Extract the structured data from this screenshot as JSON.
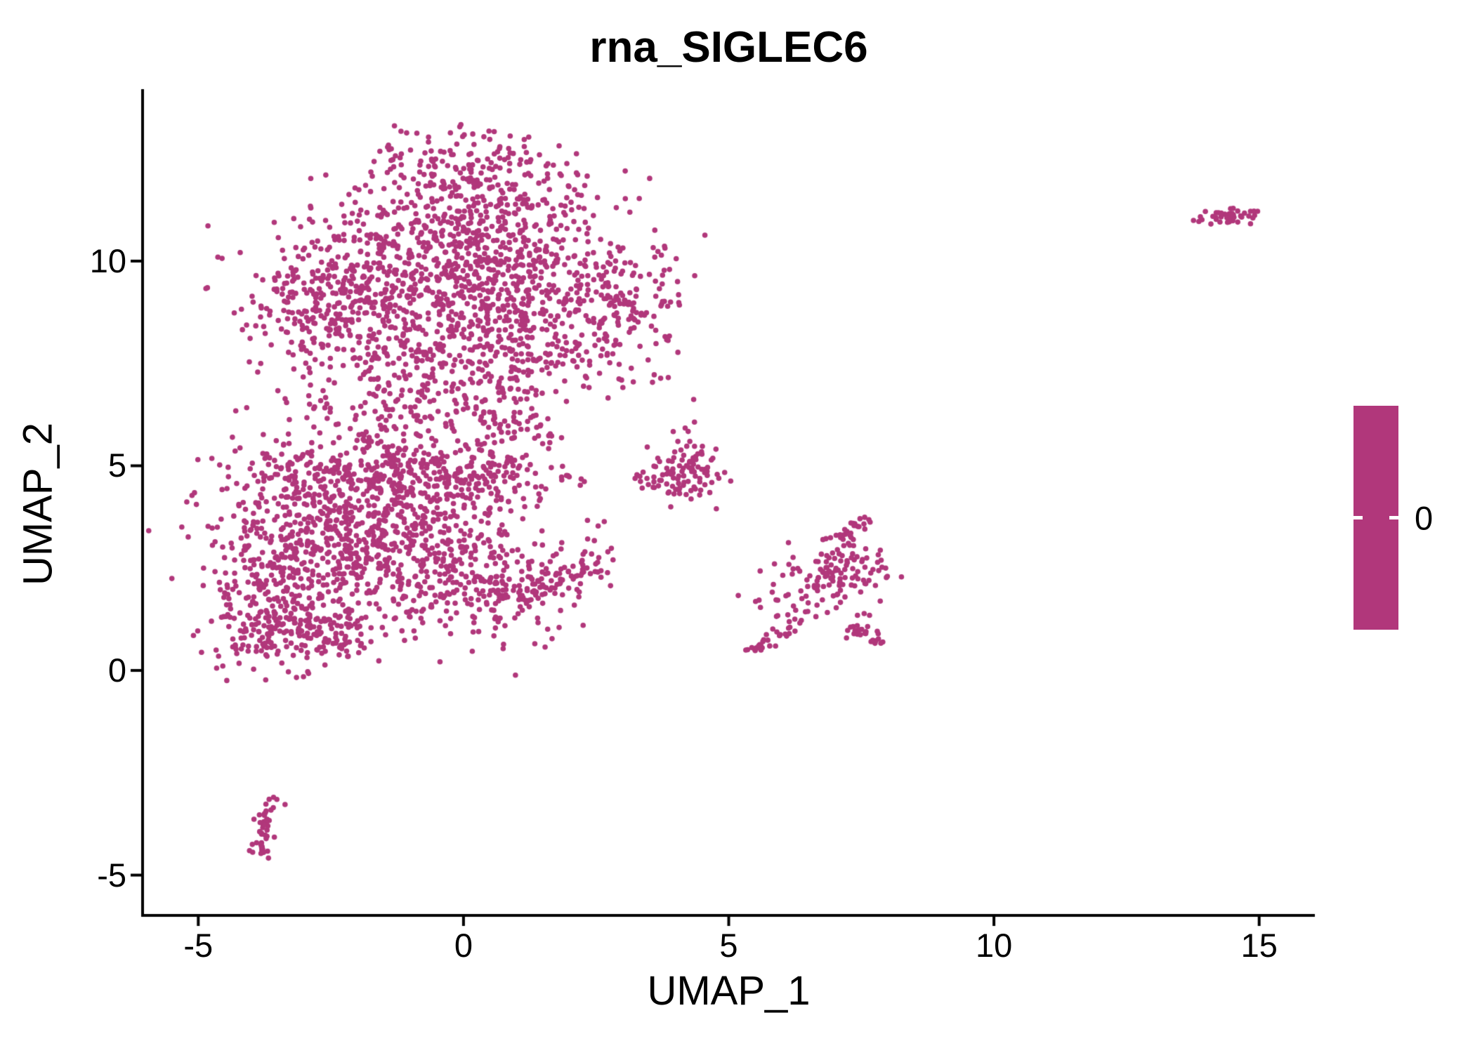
{
  "figure": {
    "title": "rna_SIGLEC6",
    "background": "#FFFFFF"
  },
  "colors": {
    "point": "#B1377B",
    "axis": "#000000",
    "text": "#000000",
    "colorbar_tick": "#FFFFFF"
  },
  "chart_data": {
    "type": "scatter",
    "title": "rna_SIGLEC6",
    "xlabel": "UMAP_1",
    "ylabel": "UMAP_2",
    "xlim": [
      -6.05,
      16.05
    ],
    "ylim": [
      -5.95,
      14.2
    ],
    "x_ticks": [
      -5,
      0,
      5,
      10,
      15
    ],
    "y_ticks": [
      10,
      5,
      0,
      -5
    ],
    "grid": false,
    "point_color": "#B1377B",
    "point_radius_px": 3.8,
    "n_points_approx": 4140,
    "legend": {
      "position": "right",
      "type": "colorbar",
      "color": "#B1377B",
      "tick_label": "0"
    },
    "clusters": [
      {
        "shape": "gauss",
        "cx": -0.7,
        "cy": 9.6,
        "sx": 1.45,
        "sy": 1.0,
        "n": 520
      },
      {
        "shape": "gauss",
        "cx": 0.9,
        "cy": 9.3,
        "sx": 1.1,
        "sy": 1.15,
        "n": 380
      },
      {
        "shape": "gauss",
        "cx": -2.4,
        "cy": 8.9,
        "sx": 0.8,
        "sy": 0.85,
        "n": 230
      },
      {
        "shape": "gauss",
        "cx": 0.4,
        "cy": 11.2,
        "sx": 1.2,
        "sy": 0.6,
        "n": 200
      },
      {
        "shape": "gauss",
        "cx": 0.2,
        "cy": 12.3,
        "sx": 0.8,
        "sy": 0.45,
        "n": 110
      },
      {
        "shape": "line",
        "x1": -1.35,
        "y1": 12.2,
        "x2": -1.2,
        "y2": 13.4,
        "jitter": 0.12,
        "n": 16
      },
      {
        "shape": "gauss",
        "cx": 2.9,
        "cy": 8.9,
        "sx": 0.6,
        "sy": 0.9,
        "n": 150
      },
      {
        "shape": "gauss",
        "cx": -0.2,
        "cy": 7.5,
        "sx": 1.5,
        "sy": 0.55,
        "n": 160
      },
      {
        "shape": "gauss",
        "cx": -1.1,
        "cy": 6.4,
        "sx": 1.0,
        "sy": 0.5,
        "n": 110
      },
      {
        "shape": "gauss",
        "cx": 0.8,
        "cy": 6.1,
        "sx": 0.5,
        "sy": 0.45,
        "n": 60
      },
      {
        "shape": "gauss",
        "cx": -2.4,
        "cy": 3.5,
        "sx": 1.15,
        "sy": 1.05,
        "n": 500
      },
      {
        "shape": "gauss",
        "cx": -0.6,
        "cy": 2.8,
        "sx": 1.15,
        "sy": 0.95,
        "n": 420
      },
      {
        "shape": "gauss",
        "cx": -3.6,
        "cy": 1.7,
        "sx": 0.6,
        "sy": 0.9,
        "n": 220
      },
      {
        "shape": "gauss",
        "cx": -1.9,
        "cy": 4.9,
        "sx": 1.25,
        "sy": 0.45,
        "n": 220
      },
      {
        "shape": "gauss",
        "cx": 0.3,
        "cy": 4.8,
        "sx": 0.7,
        "sy": 0.4,
        "n": 120
      },
      {
        "shape": "gauss",
        "cx": -3.0,
        "cy": 0.9,
        "sx": 0.75,
        "sy": 0.38,
        "n": 130
      },
      {
        "shape": "gauss",
        "cx": 0.9,
        "cy": 1.95,
        "sx": 0.65,
        "sy": 0.5,
        "n": 100
      },
      {
        "shape": "line",
        "x1": 1.3,
        "y1": 2.1,
        "x2": 2.55,
        "y2": 2.55,
        "jitter": 0.14,
        "n": 45
      },
      {
        "shape": "gauss",
        "cx": 2.6,
        "cy": 2.85,
        "sx": 0.28,
        "sy": 0.25,
        "n": 14
      },
      {
        "shape": "gauss",
        "cx": 2.0,
        "cy": 4.7,
        "sx": 0.15,
        "sy": 0.12,
        "n": 8
      },
      {
        "shape": "gauss",
        "cx": 4.25,
        "cy": 4.85,
        "sx": 0.3,
        "sy": 0.42,
        "n": 95
      },
      {
        "shape": "line",
        "x1": 3.25,
        "y1": 4.7,
        "x2": 3.8,
        "y2": 4.55,
        "jitter": 0.1,
        "n": 16
      },
      {
        "shape": "gauss",
        "cx": 7.15,
        "cy": 2.35,
        "sx": 0.45,
        "sy": 0.5,
        "n": 115
      },
      {
        "shape": "line",
        "x1": 7.0,
        "y1": 3.0,
        "x2": 7.55,
        "y2": 3.75,
        "jitter": 0.1,
        "n": 26
      },
      {
        "shape": "line",
        "x1": 5.35,
        "y1": 0.45,
        "x2": 6.35,
        "y2": 1.15,
        "jitter": 0.08,
        "n": 36
      },
      {
        "shape": "line",
        "x1": 7.3,
        "y1": 1.0,
        "x2": 7.95,
        "y2": 0.65,
        "jitter": 0.09,
        "n": 26
      },
      {
        "shape": "gauss",
        "cx": 6.35,
        "cy": 1.75,
        "sx": 0.5,
        "sy": 0.4,
        "n": 26
      },
      {
        "shape": "line",
        "x1": -3.65,
        "y1": -3.15,
        "x2": -3.85,
        "y2": -4.55,
        "jitter": 0.1,
        "n": 48
      },
      {
        "shape": "line",
        "x1": 13.8,
        "y1": 11.0,
        "x2": 14.9,
        "y2": 11.15,
        "jitter": 0.08,
        "n": 42
      }
    ]
  }
}
